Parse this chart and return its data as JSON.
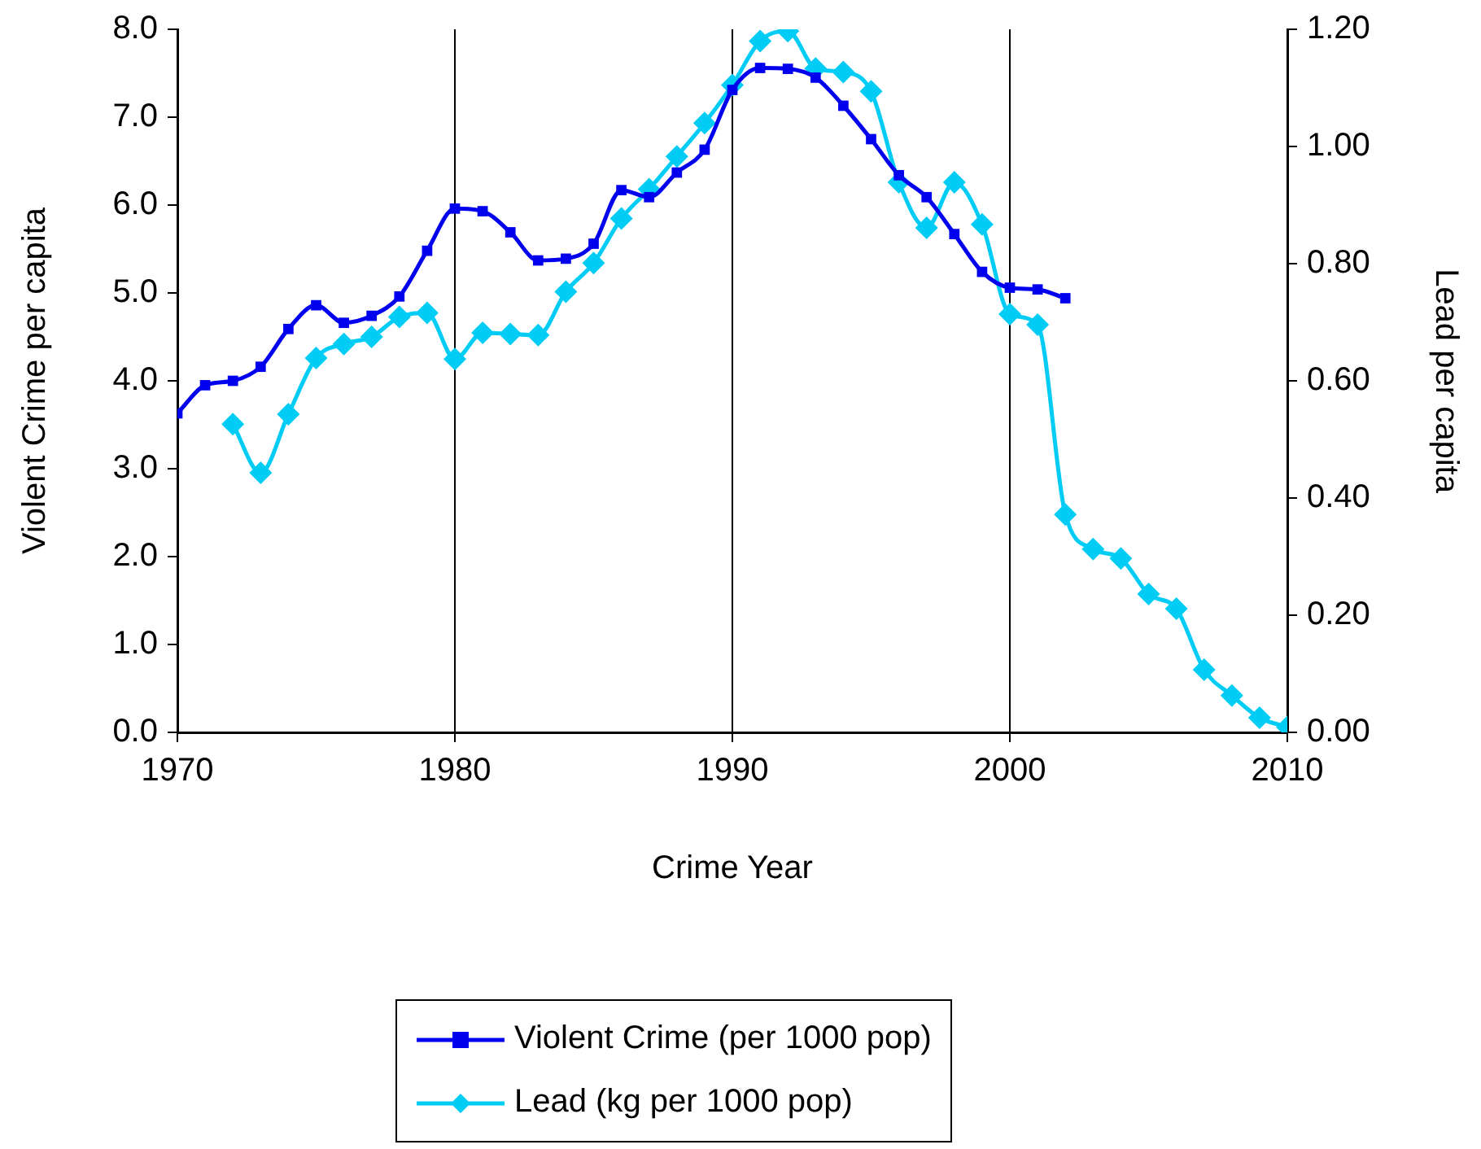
{
  "chart_data": {
    "type": "line",
    "xlabel": "Crime Year",
    "ylabel": "Violent Crime per capita",
    "y2label": "Lead per capita",
    "xlim": [
      1970,
      2010
    ],
    "xticks": [
      1970,
      1980,
      1990,
      2000,
      2010
    ],
    "ylim": [
      0,
      8
    ],
    "yticks": [
      {
        "value": 0,
        "label": "0.0"
      },
      {
        "value": 1,
        "label": "1.0"
      },
      {
        "value": 2,
        "label": "2.0"
      },
      {
        "value": 3,
        "label": "3.0"
      },
      {
        "value": 4,
        "label": "4.0"
      },
      {
        "value": 5,
        "label": "5.0"
      },
      {
        "value": 6,
        "label": "6.0"
      },
      {
        "value": 7,
        "label": "7.0"
      },
      {
        "value": 8,
        "label": "8.0"
      }
    ],
    "y2lim": [
      0,
      1.2
    ],
    "y2ticks": [
      {
        "value": 0,
        "label": "0.00"
      },
      {
        "value": 0.2,
        "label": "0.20"
      },
      {
        "value": 0.4,
        "label": "0.40"
      },
      {
        "value": 0.6,
        "label": "0.60"
      },
      {
        "value": 0.8,
        "label": "0.80"
      },
      {
        "value": 1,
        "label": "1.00"
      },
      {
        "value": 1.2,
        "label": "1.20"
      }
    ],
    "grid": "x",
    "legend": "bottom",
    "series": [
      {
        "name": "Violent Crime (per 1000 pop)",
        "color": "#0000ee",
        "marker": "square",
        "x": [
          1970,
          1971,
          1972,
          1973,
          1974,
          1975,
          1976,
          1977,
          1978,
          1979,
          1980,
          1981,
          1982,
          1983,
          1984,
          1985,
          1986,
          1987,
          1988,
          1989,
          1990,
          1991,
          1992,
          1993,
          1994,
          1995,
          1996,
          1997,
          1998,
          1999,
          2000,
          2001,
          2002
        ],
        "values": [
          3.63,
          3.95,
          4.0,
          4.16,
          4.59,
          4.86,
          4.66,
          4.74,
          4.96,
          5.48,
          5.96,
          5.93,
          5.69,
          5.37,
          5.39,
          5.56,
          6.17,
          6.09,
          6.37,
          6.63,
          7.31,
          7.56,
          7.55,
          7.45,
          7.13,
          6.75,
          6.34,
          6.09,
          5.67,
          5.24,
          5.06,
          5.04,
          4.94
        ]
      },
      {
        "name": "Lead (kg per 1000 pop)",
        "color": "#00ccf5",
        "marker": "diamond",
        "axis": "y2",
        "x": [
          1972,
          1973,
          1974,
          1975,
          1976,
          1977,
          1978,
          1979,
          1980,
          1981,
          1982,
          1983,
          1984,
          1985,
          1986,
          1987,
          1988,
          1989,
          1990,
          1991,
          1992,
          1993,
          1994,
          1995,
          1996,
          1997,
          1998,
          1999,
          2000,
          2001,
          2002,
          2003,
          2004,
          2005,
          2006,
          2007,
          2008,
          2009,
          2010
        ],
        "values": [
          0.526,
          0.443,
          0.543,
          0.639,
          0.663,
          0.675,
          0.709,
          0.716,
          0.637,
          0.682,
          0.68,
          0.678,
          0.752,
          0.801,
          0.877,
          0.927,
          0.983,
          1.04,
          1.105,
          1.18,
          1.197,
          1.133,
          1.127,
          1.094,
          0.939,
          0.861,
          0.939,
          0.867,
          0.714,
          0.696,
          0.372,
          0.313,
          0.297,
          0.236,
          0.211,
          0.107,
          0.063,
          0.025,
          0.009
        ]
      }
    ]
  }
}
